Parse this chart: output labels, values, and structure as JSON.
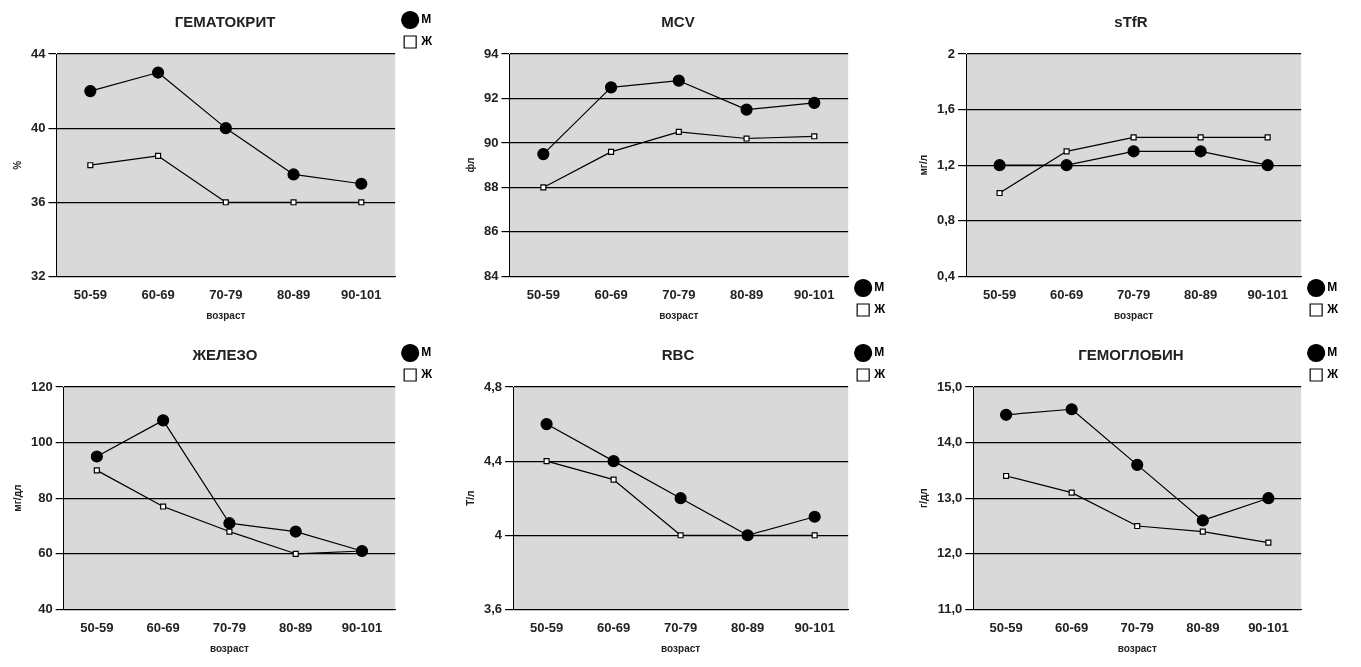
{
  "chart_data": [
    {
      "type": "line",
      "title": "ГЕМАТОКРИТ",
      "xlabel": "возраст",
      "ylabel": "%",
      "categories": [
        "50-59",
        "60-69",
        "70-79",
        "80-89",
        "90-101"
      ],
      "ylim": [
        32,
        44
      ],
      "yticks": [
        32,
        36,
        40,
        44
      ],
      "grid": "y",
      "legend": "top right",
      "series": [
        {
          "name": "М",
          "color": "#000000",
          "marker": "circle",
          "values": [
            42,
            43,
            40,
            37.5,
            37
          ]
        },
        {
          "name": "Ж",
          "color": "#000000",
          "marker": "square",
          "values": [
            38,
            38.5,
            36,
            36,
            36
          ]
        }
      ]
    },
    {
      "type": "line",
      "title": "MCV",
      "xlabel": "возраст",
      "ylabel": "фл",
      "categories": [
        "50-59",
        "60-69",
        "70-79",
        "80-89",
        "90-101"
      ],
      "ylim": [
        84,
        94
      ],
      "yticks": [
        84,
        86,
        88,
        90,
        92,
        94
      ],
      "grid": "y",
      "legend": "bottom right",
      "series": [
        {
          "name": "М",
          "color": "#000000",
          "marker": "circle",
          "values": [
            89.5,
            92.5,
            92.8,
            91.5,
            91.8
          ]
        },
        {
          "name": "Ж",
          "color": "#000000",
          "marker": "square",
          "values": [
            88,
            89.6,
            90.5,
            90.2,
            90.3
          ]
        }
      ]
    },
    {
      "type": "line",
      "title": "sTfR",
      "xlabel": "возраст",
      "ylabel": "мг/л",
      "categories": [
        "50-59",
        "60-69",
        "70-79",
        "80-89",
        "90-101"
      ],
      "ylim": [
        0.4,
        2
      ],
      "yticks": [
        {
          "value": 0.4,
          "label": "0,4"
        },
        {
          "value": 0.8,
          "label": "0,8"
        },
        {
          "value": 1.2,
          "label": "1,2"
        },
        {
          "value": 1.6,
          "label": "1,6"
        },
        2
      ],
      "grid": "y",
      "legend": "bottom right",
      "series": [
        {
          "name": "М",
          "color": "#000000",
          "marker": "circle",
          "values": [
            1.2,
            1.2,
            1.3,
            1.3,
            1.2
          ]
        },
        {
          "name": "Ж",
          "color": "#000000",
          "marker": "square",
          "values": [
            1.0,
            1.3,
            1.4,
            1.4,
            1.4
          ]
        }
      ]
    },
    {
      "type": "line",
      "title": "ЖЕЛЕЗО",
      "xlabel": "возраст",
      "ylabel": "мг/дл",
      "categories": [
        "50-59",
        "60-69",
        "70-79",
        "80-89",
        "90-101"
      ],
      "ylim": [
        40,
        120
      ],
      "yticks": [
        40,
        60,
        80,
        100,
        120
      ],
      "grid": "y",
      "legend": "top right",
      "series": [
        {
          "name": "М",
          "color": "#000000",
          "marker": "circle",
          "values": [
            95,
            108,
            71,
            68,
            61
          ]
        },
        {
          "name": "Ж",
          "color": "#000000",
          "marker": "square",
          "values": [
            90,
            77,
            68,
            60,
            61
          ]
        }
      ]
    },
    {
      "type": "line",
      "title": "RBC",
      "xlabel": "возраст",
      "ylabel": "Т/л",
      "categories": [
        "50-59",
        "60-69",
        "70-79",
        "80-89",
        "90-101"
      ],
      "ylim": [
        3.6,
        4.8
      ],
      "yticks": [
        {
          "value": 3.6,
          "label": "3,6"
        },
        4,
        {
          "value": 4.4,
          "label": "4,4"
        },
        {
          "value": 4.8,
          "label": "4,8"
        }
      ],
      "grid": "y",
      "legend": "top right",
      "series": [
        {
          "name": "М",
          "color": "#000000",
          "marker": "circle",
          "values": [
            4.6,
            4.4,
            4.2,
            4.0,
            4.1
          ]
        },
        {
          "name": "Ж",
          "color": "#000000",
          "marker": "square",
          "values": [
            4.4,
            4.3,
            4.0,
            4.0,
            4.0
          ]
        }
      ]
    },
    {
      "type": "line",
      "title": "ГЕМОГЛОБИН",
      "xlabel": "возраст",
      "ylabel": "г/дл",
      "categories": [
        "50-59",
        "60-69",
        "70-79",
        "80-89",
        "90-101"
      ],
      "ylim": [
        11,
        15
      ],
      "yticks": [
        {
          "value": 11,
          "label": "11,0"
        },
        {
          "value": 12,
          "label": "12,0"
        },
        {
          "value": 13,
          "label": "13,0"
        },
        {
          "value": 14,
          "label": "14,0"
        },
        {
          "value": 15,
          "label": "15,0"
        }
      ],
      "grid": "y",
      "legend": "top right",
      "series": [
        {
          "name": "М",
          "color": "#000000",
          "marker": "circle",
          "values": [
            14.5,
            14.6,
            13.6,
            12.6,
            13.0
          ]
        },
        {
          "name": "Ж",
          "color": "#000000",
          "marker": "square",
          "values": [
            13.4,
            13.1,
            12.5,
            12.4,
            12.2
          ]
        }
      ]
    }
  ]
}
